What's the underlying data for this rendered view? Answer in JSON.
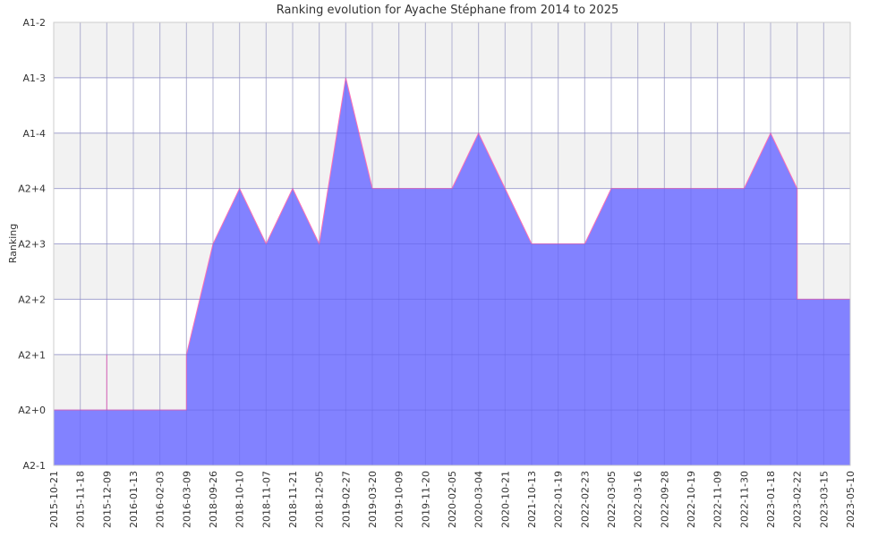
{
  "chart_data": {
    "type": "area",
    "title": "Ranking evolution for Ayache Stéphane from 2014 to 2025",
    "xlabel": "",
    "ylabel": "Ranking",
    "y_categories": [
      "A2-1",
      "A2+0",
      "A2+1",
      "A2+2",
      "A2+3",
      "A2+4",
      "A1-4",
      "A1-3",
      "A1-2"
    ],
    "x_tick_labels": [
      "2015-10-21",
      "2015-11-18",
      "2015-12-09",
      "2016-01-13",
      "2016-02-03",
      "2016-03-09",
      "2018-09-26",
      "2018-10-10",
      "2018-11-07",
      "2018-11-21",
      "2018-12-05",
      "2019-02-27",
      "2019-03-20",
      "2019-10-09",
      "2019-11-20",
      "2020-02-05",
      "2020-03-04",
      "2020-10-21",
      "2021-10-13",
      "2022-01-19",
      "2022-02-23",
      "2022-03-05",
      "2022-03-16",
      "2022-09-28",
      "2022-10-19",
      "2022-11-09",
      "2022-11-30",
      "2023-01-18",
      "2023-02-22",
      "2023-03-15",
      "2023-05-10"
    ],
    "series": [
      {
        "values": [
          [
            "2015-10-21",
            "A2+0"
          ],
          [
            "2015-12-09",
            "A2+0"
          ],
          [
            "2015-12-09",
            "A2+1"
          ],
          [
            "2015-12-09",
            "A2+0"
          ],
          [
            "2016-03-09",
            "A2+0"
          ],
          [
            "2016-03-09",
            "A2+1"
          ],
          [
            "2018-09-26",
            "A2+3"
          ],
          [
            "2018-09-26",
            "A2+3"
          ],
          [
            "2018-10-10",
            "A2+4"
          ],
          [
            "2018-10-10",
            "A2+4"
          ],
          [
            "2018-11-07",
            "A2+3"
          ],
          [
            "2018-11-21",
            "A2+4"
          ],
          [
            "2018-11-21",
            "A2+4"
          ],
          [
            "2018-12-05",
            "A2+3"
          ],
          [
            "2018-12-05",
            "A2+3"
          ],
          [
            "2019-02-27",
            "A1-3"
          ],
          [
            "2019-03-20",
            "A2+4"
          ],
          [
            "2020-02-05",
            "A2+4"
          ],
          [
            "2020-03-04",
            "A1-4"
          ],
          [
            "2020-03-04",
            "A1-4"
          ],
          [
            "2020-10-21",
            "A2+4"
          ],
          [
            "2020-10-21",
            "A2+4"
          ],
          [
            "2021-10-13",
            "A2+3"
          ],
          [
            "2022-02-23",
            "A2+3"
          ],
          [
            "2022-03-05",
            "A2+4"
          ],
          [
            "2022-11-30",
            "A2+4"
          ],
          [
            "2023-01-18",
            "A1-4"
          ],
          [
            "2023-01-18",
            "A1-4"
          ],
          [
            "2023-02-22",
            "A2+4"
          ],
          [
            "2023-02-22",
            "A2+2"
          ],
          [
            "2023-05-10",
            "A2+2"
          ]
        ]
      }
    ],
    "colors": {
      "fill": "#7b7bff",
      "line": "#ff6fb4",
      "grid": "#d0d0d0",
      "band": "#f2f2f2"
    },
    "grid": true
  }
}
